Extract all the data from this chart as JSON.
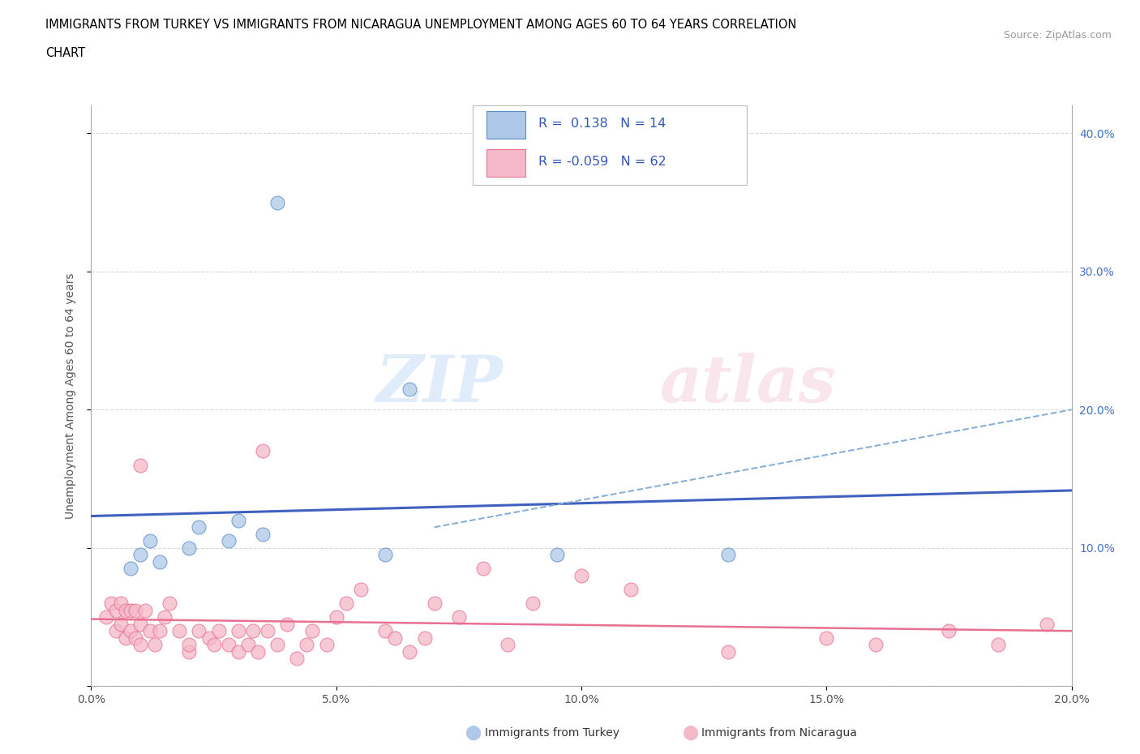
{
  "title_line1": "IMMIGRANTS FROM TURKEY VS IMMIGRANTS FROM NICARAGUA UNEMPLOYMENT AMONG AGES 60 TO 64 YEARS CORRELATION",
  "title_line2": "CHART",
  "source": "Source: ZipAtlas.com",
  "ylabel": "Unemployment Among Ages 60 to 64 years",
  "xlim": [
    0.0,
    0.2
  ],
  "ylim": [
    0.0,
    0.42
  ],
  "xticks": [
    0.0,
    0.05,
    0.1,
    0.15,
    0.2
  ],
  "xtick_labels": [
    "0.0%",
    "5.0%",
    "10.0%",
    "15.0%",
    "20.0%"
  ],
  "yticks": [
    0.0,
    0.1,
    0.2,
    0.3,
    0.4
  ],
  "ytick_labels_right": [
    "",
    "10.0%",
    "20.0%",
    "30.0%",
    "40.0%"
  ],
  "legend_r_turkey": "0.138",
  "legend_n_turkey": "14",
  "legend_r_nicaragua": "-0.059",
  "legend_n_nicaragua": "62",
  "turkey_color": "#adc8e8",
  "nicaragua_color": "#f5b8c8",
  "turkey_edge_color": "#5b8cc8",
  "nicaragua_edge_color": "#e87090",
  "turkey_line_color": "#4060c0",
  "nicaragua_line_color": "#e87090",
  "dashed_line_color": "#8ab0d8",
  "grid_color": "#d8d8d8",
  "turkey_x": [
    0.008,
    0.01,
    0.012,
    0.014,
    0.02,
    0.022,
    0.028,
    0.03,
    0.035,
    0.038,
    0.06,
    0.065,
    0.095,
    0.13
  ],
  "turkey_y": [
    0.085,
    0.095,
    0.105,
    0.09,
    0.1,
    0.115,
    0.105,
    0.12,
    0.11,
    0.35,
    0.095,
    0.215,
    0.095,
    0.095
  ],
  "nicaragua_x": [
    0.003,
    0.004,
    0.005,
    0.005,
    0.006,
    0.006,
    0.007,
    0.007,
    0.008,
    0.008,
    0.009,
    0.009,
    0.01,
    0.01,
    0.01,
    0.011,
    0.012,
    0.013,
    0.014,
    0.015,
    0.016,
    0.018,
    0.02,
    0.02,
    0.022,
    0.024,
    0.025,
    0.026,
    0.028,
    0.03,
    0.03,
    0.032,
    0.033,
    0.034,
    0.035,
    0.036,
    0.038,
    0.04,
    0.042,
    0.044,
    0.045,
    0.048,
    0.05,
    0.052,
    0.055,
    0.06,
    0.062,
    0.065,
    0.068,
    0.07,
    0.075,
    0.08,
    0.085,
    0.09,
    0.1,
    0.11,
    0.13,
    0.15,
    0.16,
    0.175,
    0.185,
    0.195
  ],
  "nicaragua_y": [
    0.05,
    0.06,
    0.04,
    0.055,
    0.045,
    0.06,
    0.035,
    0.055,
    0.04,
    0.055,
    0.035,
    0.055,
    0.03,
    0.045,
    0.16,
    0.055,
    0.04,
    0.03,
    0.04,
    0.05,
    0.06,
    0.04,
    0.025,
    0.03,
    0.04,
    0.035,
    0.03,
    0.04,
    0.03,
    0.025,
    0.04,
    0.03,
    0.04,
    0.025,
    0.17,
    0.04,
    0.03,
    0.045,
    0.02,
    0.03,
    0.04,
    0.03,
    0.05,
    0.06,
    0.07,
    0.04,
    0.035,
    0.025,
    0.035,
    0.06,
    0.05,
    0.085,
    0.03,
    0.06,
    0.08,
    0.07,
    0.025,
    0.035,
    0.03,
    0.04,
    0.03,
    0.045
  ],
  "turkey_trendline_x0": 0.0,
  "turkey_trendline_y0": 0.085,
  "turkey_trendline_x1": 0.2,
  "turkey_trendline_y1": 0.145,
  "nicaragua_trendline_x0": 0.0,
  "nicaragua_trendline_y0": 0.038,
  "nicaragua_trendline_x1": 0.2,
  "nicaragua_trendline_y1": 0.03,
  "dashed_trendline_x0": 0.07,
  "dashed_trendline_y0": 0.115,
  "dashed_trendline_x1": 0.2,
  "dashed_trendline_y1": 0.2
}
